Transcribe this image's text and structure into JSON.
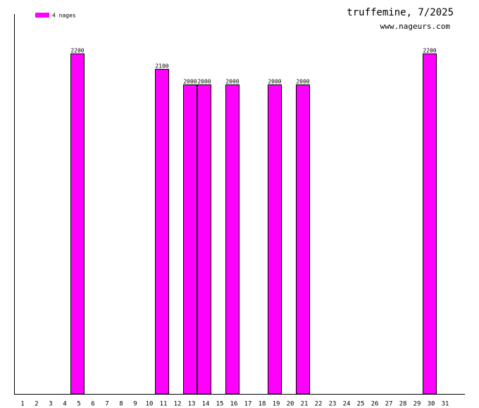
{
  "chart_data": {
    "type": "bar",
    "title": "truffemine, 7/2025",
    "subtitle": "www.nageurs.com",
    "categories": [
      "1",
      "2",
      "3",
      "4",
      "5",
      "6",
      "7",
      "8",
      "9",
      "10",
      "11",
      "12",
      "13",
      "14",
      "15",
      "16",
      "17",
      "18",
      "19",
      "20",
      "21",
      "22",
      "23",
      "24",
      "25",
      "26",
      "27",
      "28",
      "29",
      "30",
      "31"
    ],
    "series": [
      {
        "name": "4 nages",
        "color": "#ff00ff",
        "values": [
          null,
          null,
          null,
          null,
          2200,
          null,
          null,
          null,
          null,
          null,
          2100,
          null,
          2000,
          2000,
          null,
          2000,
          null,
          null,
          2000,
          null,
          2000,
          null,
          null,
          null,
          null,
          null,
          null,
          null,
          null,
          2200,
          null
        ]
      }
    ],
    "ylim": [
      0,
      2455
    ],
    "legend": "top-left"
  }
}
